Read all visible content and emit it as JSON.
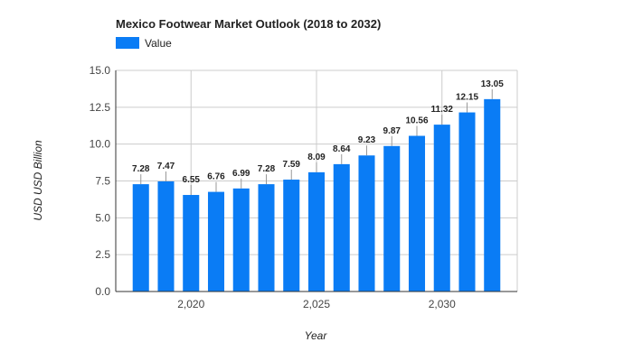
{
  "chart_data": {
    "type": "bar",
    "title": "Mexico Footwear Market Outlook (2018 to 2032)",
    "xlabel": "Year",
    "ylabel": "USD USD Billion",
    "legend_position": "top-left",
    "grid": true,
    "x": [
      2018,
      2019,
      2020,
      2021,
      2022,
      2023,
      2024,
      2025,
      2026,
      2027,
      2028,
      2029,
      2030,
      2031,
      2032
    ],
    "series": [
      {
        "name": "Value",
        "color": "#0a7cf5",
        "values": [
          7.28,
          7.47,
          6.55,
          6.76,
          6.99,
          7.28,
          7.59,
          8.09,
          8.64,
          9.23,
          9.87,
          10.56,
          11.32,
          12.15,
          13.05
        ],
        "labels": [
          "7.28",
          "7.47",
          "6.55",
          "6.76",
          "6.99",
          "7.28",
          "7.59",
          "8.09",
          "8.64",
          "9.23",
          "9.87",
          "10.56",
          "11.32",
          "12.15",
          "13.05"
        ]
      }
    ],
    "ylim": [
      0,
      15
    ],
    "yticks": [
      0,
      2.5,
      5,
      7.5,
      10,
      12.5,
      15
    ],
    "ytick_labels": [
      "0.0",
      "2.5",
      "5.0",
      "7.5",
      "10.0",
      "12.5",
      "15.0"
    ],
    "xticks": [
      2020,
      2025,
      2030
    ],
    "xtick_labels": [
      "2,020",
      "2,025",
      "2,030"
    ],
    "xlim": [
      2017,
      2033
    ]
  }
}
